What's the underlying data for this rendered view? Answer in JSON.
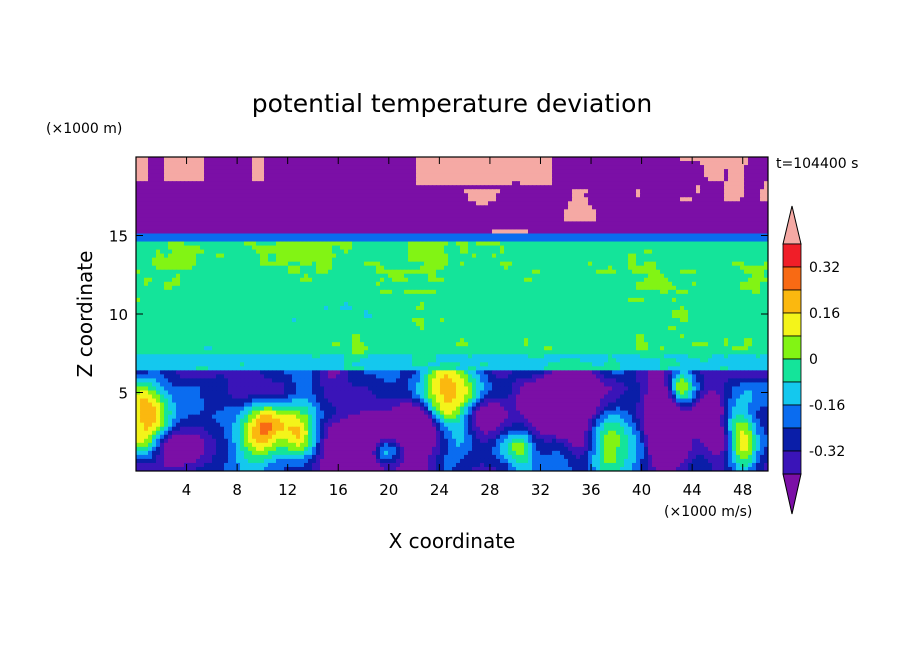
{
  "chart_data": {
    "type": "heatmap",
    "title": "potential temperature deviation",
    "xlabel": "X coordinate",
    "ylabel": "Z coordinate",
    "x_unit": "(×1000 m/s)",
    "y_unit": "(×1000 m)",
    "time_label": "t=104400 s",
    "xlim": [
      0,
      50
    ],
    "ylim": [
      0,
      20
    ],
    "x_ticks": [
      4,
      8,
      12,
      16,
      20,
      24,
      28,
      32,
      36,
      40,
      44,
      48
    ],
    "y_ticks": [
      5,
      10,
      15
    ],
    "colorbar": {
      "levels": [
        -0.4,
        -0.32,
        -0.24,
        -0.16,
        -0.08,
        0,
        0.08,
        0.16,
        0.24,
        0.32,
        0.4
      ],
      "colors": [
        "#7b0fa6",
        "#3a14b8",
        "#0a1ea8",
        "#0a6cf0",
        "#14c8ee",
        "#14e49a",
        "#82f414",
        "#f4f41a",
        "#fbb80f",
        "#f86a14",
        "#f01e28",
        "#f5a9a4"
      ],
      "tick_labels": [
        "0.32",
        "0.16",
        "0",
        "-0.16",
        "-0.32"
      ],
      "tick_values": [
        0.32,
        0.16,
        0,
        -0.16,
        -0.32
      ]
    },
    "grid": false,
    "legend": "colorbar-right"
  }
}
